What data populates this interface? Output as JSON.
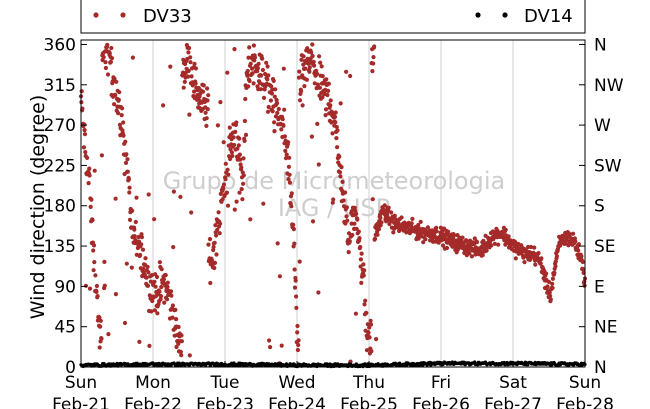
{
  "chart_data": {
    "type": "scatter",
    "ylabel": "Wind direction (degree)",
    "ylim": [
      0,
      365
    ],
    "yticks": [
      0,
      45,
      90,
      135,
      180,
      225,
      270,
      315,
      360
    ],
    "y2ticks": [
      "N",
      "NE",
      "E",
      "SE",
      "S",
      "SW",
      "W",
      "NW",
      "N"
    ],
    "xlim": [
      0,
      7
    ],
    "xticks": [
      {
        "day": "Sun",
        "date": "Feb-21"
      },
      {
        "day": "Mon",
        "date": "Feb-22"
      },
      {
        "day": "Tue",
        "date": "Feb-23"
      },
      {
        "day": "Wed",
        "date": "Feb-24"
      },
      {
        "day": "Thu",
        "date": "Feb-25"
      },
      {
        "day": "Fri",
        "date": "Feb-26"
      },
      {
        "day": "Sat",
        "date": "Feb-27"
      },
      {
        "day": "Sun",
        "date": "Feb-28"
      }
    ],
    "grid": "vertical",
    "legend_placement": "top, outside plot",
    "watermark": [
      "Grupo de Micrometeorologia",
      "IAG / USP"
    ],
    "series": [
      {
        "name": "DV33",
        "color": "#a52a2a",
        "anchors": [
          [
            0.0,
            300
          ],
          [
            0.05,
            250
          ],
          [
            0.12,
            200
          ],
          [
            0.18,
            120
          ],
          [
            0.24,
            60
          ],
          [
            0.28,
            20
          ],
          [
            0.31,
            340
          ],
          [
            0.4,
            350
          ],
          [
            0.48,
            310
          ],
          [
            0.55,
            280
          ],
          [
            0.62,
            240
          ],
          [
            0.72,
            145
          ],
          [
            0.85,
            125
          ],
          [
            0.95,
            90
          ],
          [
            1.05,
            80
          ],
          [
            1.15,
            100
          ],
          [
            1.28,
            60
          ],
          [
            1.38,
            20
          ],
          [
            1.42,
            330
          ],
          [
            1.5,
            345
          ],
          [
            1.6,
            310
          ],
          [
            1.72,
            290
          ],
          [
            1.82,
            120
          ],
          [
            1.9,
            160
          ],
          [
            1.97,
            190
          ],
          [
            2.08,
            245
          ],
          [
            2.15,
            265
          ],
          [
            2.25,
            200
          ],
          [
            2.3,
            330
          ],
          [
            2.42,
            340
          ],
          [
            2.55,
            320
          ],
          [
            2.68,
            300
          ],
          [
            2.8,
            260
          ],
          [
            2.88,
            230
          ],
          [
            2.95,
            150
          ],
          [
            3.0,
            30
          ],
          [
            3.05,
            320
          ],
          [
            3.18,
            345
          ],
          [
            3.3,
            320
          ],
          [
            3.45,
            300
          ],
          [
            3.55,
            265
          ],
          [
            3.62,
            200
          ],
          [
            3.72,
            140
          ],
          [
            3.78,
            175
          ],
          [
            3.85,
            150
          ],
          [
            3.92,
            100
          ],
          [
            3.97,
            40
          ],
          [
            4.02,
            30
          ],
          [
            4.05,
            345
          ],
          [
            4.1,
            150
          ],
          [
            4.2,
            175
          ],
          [
            4.35,
            160
          ],
          [
            4.55,
            155
          ],
          [
            4.75,
            150
          ],
          [
            4.95,
            148
          ],
          [
            5.15,
            140
          ],
          [
            5.35,
            135
          ],
          [
            5.55,
            130
          ],
          [
            5.7,
            145
          ],
          [
            5.85,
            150
          ],
          [
            6.0,
            135
          ],
          [
            6.15,
            127
          ],
          [
            6.3,
            125
          ],
          [
            6.4,
            115
          ],
          [
            6.45,
            95
          ],
          [
            6.52,
            80
          ],
          [
            6.58,
            110
          ],
          [
            6.65,
            140
          ],
          [
            6.75,
            145
          ],
          [
            6.85,
            140
          ],
          [
            6.95,
            120
          ],
          [
            7.0,
            95
          ]
        ]
      },
      {
        "name": "DV14",
        "color": "#000000",
        "anchors": [
          [
            0.0,
            2
          ],
          [
            1.0,
            3
          ],
          [
            2.0,
            3
          ],
          [
            3.0,
            2
          ],
          [
            4.0,
            2
          ],
          [
            5.0,
            4
          ],
          [
            6.0,
            4
          ],
          [
            7.0,
            3
          ]
        ]
      }
    ]
  }
}
